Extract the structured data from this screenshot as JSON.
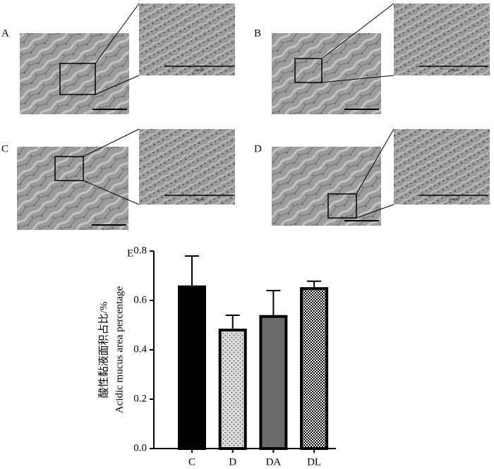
{
  "panels": [
    {
      "label": "A",
      "scale_text": "100 μm"
    },
    {
      "label": "B",
      "scale_text": "100 μm"
    },
    {
      "label": "C",
      "scale_text": "100 μm"
    },
    {
      "label": "D",
      "scale_text": "100 μm"
    }
  ],
  "chart_data": {
    "type": "bar",
    "panel_label": "E",
    "y_label": [
      "酸性黏液面积占比/%",
      "Acidic mucus area percentage"
    ],
    "categories": [
      "C",
      "D",
      "DA",
      "DL"
    ],
    "values": [
      0.655,
      0.48,
      0.535,
      0.648
    ],
    "errors": [
      0.125,
      0.06,
      0.105,
      0.03
    ],
    "colors": [
      "#000000",
      "#dcdcdc",
      "#6a6a6a",
      "#ffffff"
    ],
    "patterns": [
      "solid",
      "dots",
      "solid",
      "checker"
    ],
    "ylim": [
      0,
      0.8
    ],
    "yticks": [
      {
        "value": 0,
        "label": "0.0"
      },
      0.2,
      0.4,
      0.6,
      0.8
    ]
  }
}
